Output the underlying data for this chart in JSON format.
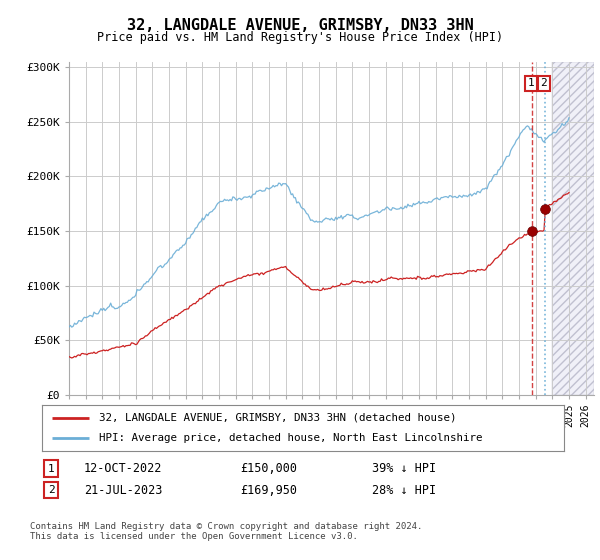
{
  "title": "32, LANGDALE AVENUE, GRIMSBY, DN33 3HN",
  "subtitle": "Price paid vs. HM Land Registry's House Price Index (HPI)",
  "ylabel_ticks": [
    "£0",
    "£50K",
    "£100K",
    "£150K",
    "£200K",
    "£250K",
    "£300K"
  ],
  "ytick_values": [
    0,
    50000,
    100000,
    150000,
    200000,
    250000,
    300000
  ],
  "ylim": [
    0,
    305000
  ],
  "xlim_start": 1995.0,
  "xlim_end": 2026.5,
  "hpi_color": "#6baed6",
  "price_color": "#cc2222",
  "sale1_x": 2022.79,
  "sale1_price": 150000,
  "sale2_x": 2023.54,
  "sale2_price": 169950,
  "legend_line1": "32, LANGDALE AVENUE, GRIMSBY, DN33 3HN (detached house)",
  "legend_line2": "HPI: Average price, detached house, North East Lincolnshire",
  "footnote1": "Contains HM Land Registry data © Crown copyright and database right 2024.",
  "footnote2": "This data is licensed under the Open Government Licence v3.0.",
  "background_color": "#ffffff",
  "grid_color": "#cccccc",
  "hatch_start": 2024.0
}
